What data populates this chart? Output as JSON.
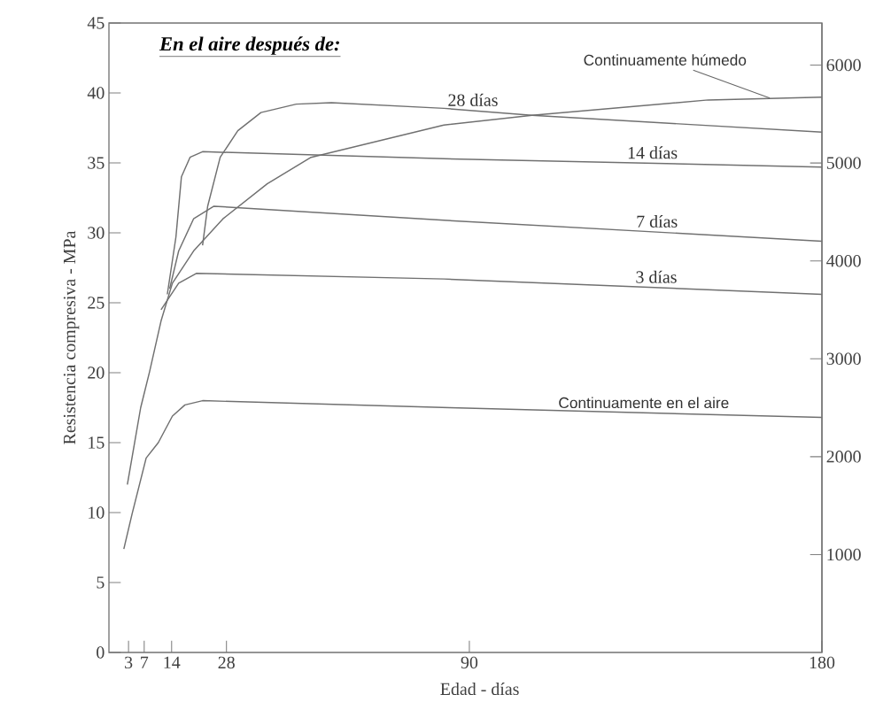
{
  "chart_data": {
    "type": "line",
    "xlabel": "Edad - días",
    "ylabel": "Resistencia compresiva - MPa",
    "annotations": [
      "En el aire después de:"
    ],
    "xlim": [
      -2,
      180
    ],
    "xticks": [
      3,
      7,
      14,
      28,
      90,
      180
    ],
    "ylim": [
      0,
      45
    ],
    "yticks": [
      0,
      5,
      10,
      15,
      20,
      25,
      30,
      35,
      40,
      45
    ],
    "y2lim": [
      0,
      6430
    ],
    "y2ticks": [
      1000,
      2000,
      3000,
      4000,
      5000,
      6000
    ],
    "grid": false,
    "legend": false,
    "marker": "none",
    "line_style": "solid",
    "series": [
      {
        "name": "Continuamente húmedo",
        "color": "#707070",
        "x": [
          2.7,
          6.1,
          8.4,
          11.3,
          14.2,
          19.6,
          27.1,
          38.4,
          49.6,
          83.5,
          106,
          151,
          180
        ],
        "values": [
          12.0,
          17.5,
          20.1,
          23.7,
          26.4,
          28.7,
          31.0,
          33.5,
          35.4,
          37.7,
          38.4,
          39.5,
          39.7
        ]
      },
      {
        "name": "28 días",
        "color": "#707070",
        "x": [
          21.9,
          23.2,
          26.4,
          30.9,
          36.8,
          45.8,
          54.8,
          83.5,
          106,
          180
        ],
        "values": [
          29.1,
          31.9,
          35.4,
          37.3,
          38.6,
          39.2,
          39.3,
          38.9,
          38.4,
          37.2
        ]
      },
      {
        "name": "14 días",
        "color": "#707070",
        "x": [
          12.9,
          15.1,
          16.5,
          18.7,
          21.9,
          83.5,
          180
        ],
        "values": [
          25.6,
          29.7,
          34.0,
          35.4,
          35.8,
          35.3,
          34.7
        ]
      },
      {
        "name": "7 días",
        "color": "#707070",
        "x": [
          13.5,
          15.8,
          19.6,
          24.8,
          83.5,
          180
        ],
        "values": [
          26.0,
          28.7,
          31.0,
          31.9,
          30.9,
          29.4
        ]
      },
      {
        "name": "3 días",
        "color": "#707070",
        "x": [
          11.3,
          15.8,
          20.3,
          83.5,
          180
        ],
        "values": [
          24.5,
          26.4,
          27.1,
          26.7,
          25.6
        ]
      },
      {
        "name": "Continuamente en el aire",
        "color": "#707070",
        "x": [
          1.8,
          3.9,
          7.5,
          10.6,
          14.2,
          17.4,
          21.9,
          85,
          180
        ],
        "values": [
          7.4,
          9.9,
          13.9,
          15.0,
          16.9,
          17.7,
          18.0,
          17.5,
          16.8
        ]
      }
    ]
  }
}
